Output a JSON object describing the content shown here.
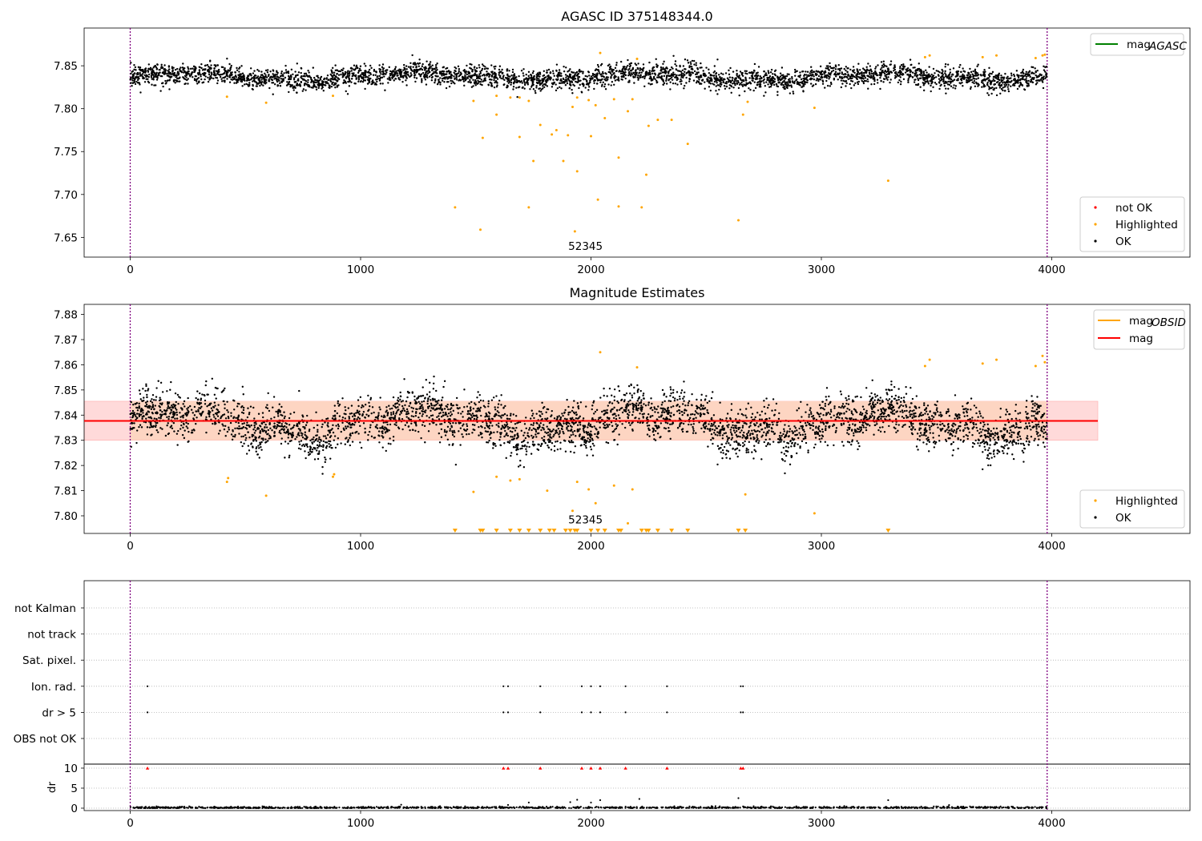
{
  "chart_data": [
    {
      "type": "scatter",
      "title": "AGASC ID 375148344.0",
      "xlim": [
        -200,
        4600
      ],
      "ylim": [
        7.627,
        7.894
      ],
      "xticks": [
        0,
        1000,
        2000,
        3000,
        4000
      ],
      "yticks": [
        7.65,
        7.7,
        7.75,
        7.8,
        7.85
      ],
      "yticklabels": [
        "7.65",
        "7.70",
        "7.75",
        "7.80",
        "7.85"
      ],
      "vlines": [
        0,
        3980
      ],
      "hline": {
        "label": "mag_AGASC",
        "y": 7.84,
        "color": "#008000"
      },
      "annotation": {
        "text": "52345",
        "x": 1990,
        "y": 7.64
      },
      "legend_top": [
        {
          "label": "mag",
          "sub": "AGASC",
          "color": "#008000"
        }
      ],
      "legend_bottom": [
        {
          "label": "not OK",
          "color": "#ff0000"
        },
        {
          "label": "Highlighted",
          "color": "#ffa500"
        },
        {
          "label": "OK",
          "color": "#000000"
        }
      ],
      "ok_band": {
        "x": [
          0,
          3980
        ],
        "center": 7.837,
        "scatter": 0.006
      },
      "highlighted": [
        [
          420,
          7.814
        ],
        [
          590,
          7.807
        ],
        [
          880,
          7.815
        ],
        [
          1490,
          7.809
        ],
        [
          1590,
          7.815
        ],
        [
          1650,
          7.813
        ],
        [
          1690,
          7.813
        ],
        [
          1730,
          7.809
        ],
        [
          1530,
          7.766
        ],
        [
          1590,
          7.793
        ],
        [
          1690,
          7.767
        ],
        [
          1780,
          7.781
        ],
        [
          1830,
          7.77
        ],
        [
          1850,
          7.775
        ],
        [
          1900,
          7.769
        ],
        [
          1920,
          7.802
        ],
        [
          1940,
          7.813
        ],
        [
          1990,
          7.81
        ],
        [
          2020,
          7.804
        ],
        [
          2060,
          7.789
        ],
        [
          2100,
          7.811
        ],
        [
          2160,
          7.797
        ],
        [
          2180,
          7.811
        ],
        [
          2250,
          7.78
        ],
        [
          2290,
          7.787
        ],
        [
          2350,
          7.787
        ],
        [
          2420,
          7.759
        ],
        [
          2660,
          7.793
        ],
        [
          2680,
          7.808
        ],
        [
          2970,
          7.801
        ],
        [
          1750,
          7.739
        ],
        [
          1880,
          7.739
        ],
        [
          1940,
          7.727
        ],
        [
          2120,
          7.743
        ],
        [
          2240,
          7.723
        ],
        [
          3290,
          7.716
        ],
        [
          1410,
          7.685
        ],
        [
          1730,
          7.685
        ],
        [
          2030,
          7.694
        ],
        [
          2120,
          7.686
        ],
        [
          2220,
          7.685
        ],
        [
          2640,
          7.67
        ],
        [
          1520,
          7.659
        ],
        [
          1930,
          7.657
        ],
        [
          2000,
          7.768
        ],
        [
          2040,
          7.865
        ],
        [
          2200,
          7.858
        ],
        [
          3450,
          7.86
        ],
        [
          3470,
          7.862
        ],
        [
          3700,
          7.86
        ],
        [
          3760,
          7.862
        ],
        [
          3930,
          7.859
        ],
        [
          3960,
          7.862
        ],
        [
          3970,
          7.863
        ]
      ]
    },
    {
      "type": "scatter",
      "title": "Magnitude Estimates",
      "xlim": [
        -200,
        4600
      ],
      "ylim": [
        7.793,
        7.884
      ],
      "xticks": [
        0,
        1000,
        2000,
        3000,
        4000
      ],
      "yticks": [
        7.8,
        7.81,
        7.82,
        7.83,
        7.84,
        7.85,
        7.86,
        7.87,
        7.88
      ],
      "yticklabels": [
        "7.80",
        "7.81",
        "7.82",
        "7.83",
        "7.84",
        "7.85",
        "7.86",
        "7.87",
        "7.88"
      ],
      "vlines": [
        0,
        3980
      ],
      "mag_line": {
        "y": 7.8377,
        "x": [
          -200,
          4200
        ],
        "color": "#ff0000"
      },
      "band": {
        "y": [
          7.83,
          7.8455
        ],
        "x": [
          -200,
          4200
        ]
      },
      "annotation": {
        "text": "52345",
        "x": 1990,
        "y": 7.7985
      },
      "legend_top": [
        {
          "label": "mag",
          "sub": "OBSID",
          "color": "#ffa500"
        },
        {
          "label": "mag",
          "sub": "",
          "color": "#ff0000"
        }
      ],
      "legend_bottom": [
        {
          "label": "Highlighted",
          "color": "#ffa500"
        },
        {
          "label": "OK",
          "color": "#000000"
        }
      ],
      "highlighted": [
        [
          420,
          7.8135
        ],
        [
          425,
          7.815
        ],
        [
          590,
          7.808
        ],
        [
          880,
          7.8155
        ],
        [
          885,
          7.8165
        ],
        [
          1490,
          7.8095
        ],
        [
          1590,
          7.8155
        ],
        [
          1650,
          7.814
        ],
        [
          1690,
          7.8145
        ],
        [
          1810,
          7.81
        ],
        [
          1920,
          7.802
        ],
        [
          1940,
          7.8135
        ],
        [
          1990,
          7.8105
        ],
        [
          2020,
          7.805
        ],
        [
          2100,
          7.812
        ],
        [
          2160,
          7.797
        ],
        [
          2180,
          7.8105
        ],
        [
          2670,
          7.8085
        ],
        [
          2970,
          7.801
        ],
        [
          2040,
          7.865
        ],
        [
          2200,
          7.859
        ],
        [
          3450,
          7.8595
        ],
        [
          3470,
          7.862
        ],
        [
          3700,
          7.8605
        ],
        [
          3760,
          7.862
        ],
        [
          3930,
          7.8595
        ],
        [
          3960,
          7.8635
        ],
        [
          3970,
          7.861
        ]
      ],
      "below_range_markers": [
        1410,
        1520,
        1530,
        1590,
        1650,
        1690,
        1730,
        1780,
        1820,
        1840,
        1890,
        1910,
        1930,
        1940,
        2000,
        2030,
        2060,
        2120,
        2130,
        2220,
        2240,
        2250,
        2290,
        2350,
        2420,
        2640,
        2670,
        3290
      ]
    },
    {
      "type": "scatter",
      "title": "",
      "xlim": [
        -200,
        4600
      ],
      "xticks": [
        0,
        1000,
        2000,
        3000,
        4000
      ],
      "vlines": [
        0,
        3980
      ],
      "categories": [
        "not Kalman",
        "not track",
        "Sat. pixel.",
        "Ion. rad.",
        "dr > 5",
        "OBS not OK"
      ],
      "flag_points": {
        "Ion. rad.": [
          75,
          1620,
          1640,
          1780,
          1960,
          2000,
          2040,
          2150,
          2330,
          2650,
          2660
        ],
        "dr > 5": [
          75,
          1620,
          1640,
          1780,
          1960,
          2000,
          2040,
          2150,
          2330,
          2650,
          2660
        ]
      },
      "dr_panel": {
        "ylabel": "dr",
        "ylim": [
          -0.6,
          11
        ],
        "yticks": [
          0,
          5,
          10
        ],
        "yticklabels": [
          "0",
          "5",
          "10"
        ],
        "red_markers_at_10": [
          75,
          1620,
          1640,
          1780,
          1960,
          2000,
          2040,
          2150,
          2330,
          2650,
          2660
        ],
        "scatter_points": [
          [
            1640,
            0.8
          ],
          [
            1730,
            1.4
          ],
          [
            1910,
            1.5
          ],
          [
            1940,
            2.1
          ],
          [
            2000,
            1.4
          ],
          [
            2040,
            2.0
          ],
          [
            2210,
            2.3
          ],
          [
            2640,
            2.5
          ],
          [
            3290,
            2.0
          ]
        ]
      }
    }
  ]
}
